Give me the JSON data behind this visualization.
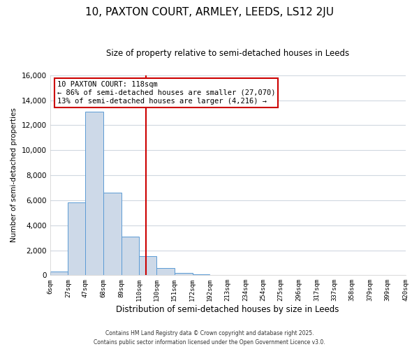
{
  "title": "10, PAXTON COURT, ARMLEY, LEEDS, LS12 2JU",
  "subtitle": "Size of property relative to semi-detached houses in Leeds",
  "xlabel": "Distribution of semi-detached houses by size in Leeds",
  "ylabel": "Number of semi-detached properties",
  "bin_edges": [
    6,
    27,
    47,
    68,
    89,
    110,
    130,
    151,
    172,
    192,
    213,
    234,
    254,
    275,
    296,
    317,
    337,
    358,
    379,
    399,
    420
  ],
  "bin_counts": [
    300,
    5800,
    13100,
    6600,
    3100,
    1500,
    600,
    200,
    100,
    0,
    0,
    0,
    0,
    0,
    0,
    0,
    0,
    0,
    0,
    0
  ],
  "bar_facecolor": "#cdd9e8",
  "bar_edgecolor": "#5b9bd5",
  "property_value": 118,
  "vline_color": "#cc0000",
  "annotation_title": "10 PAXTON COURT: 118sqm",
  "annotation_line1": "← 86% of semi-detached houses are smaller (27,070)",
  "annotation_line2": "13% of semi-detached houses are larger (4,216) →",
  "annotation_box_edgecolor": "#cc0000",
  "annotation_box_facecolor": "#ffffff",
  "ylim": [
    0,
    16000
  ],
  "yticks": [
    0,
    2000,
    4000,
    6000,
    8000,
    10000,
    12000,
    14000,
    16000
  ],
  "bg_color": "#ffffff",
  "plot_bg_color": "#ffffff",
  "grid_color": "#d0d8e0",
  "footer1": "Contains HM Land Registry data © Crown copyright and database right 2025.",
  "footer2": "Contains public sector information licensed under the Open Government Licence v3.0."
}
